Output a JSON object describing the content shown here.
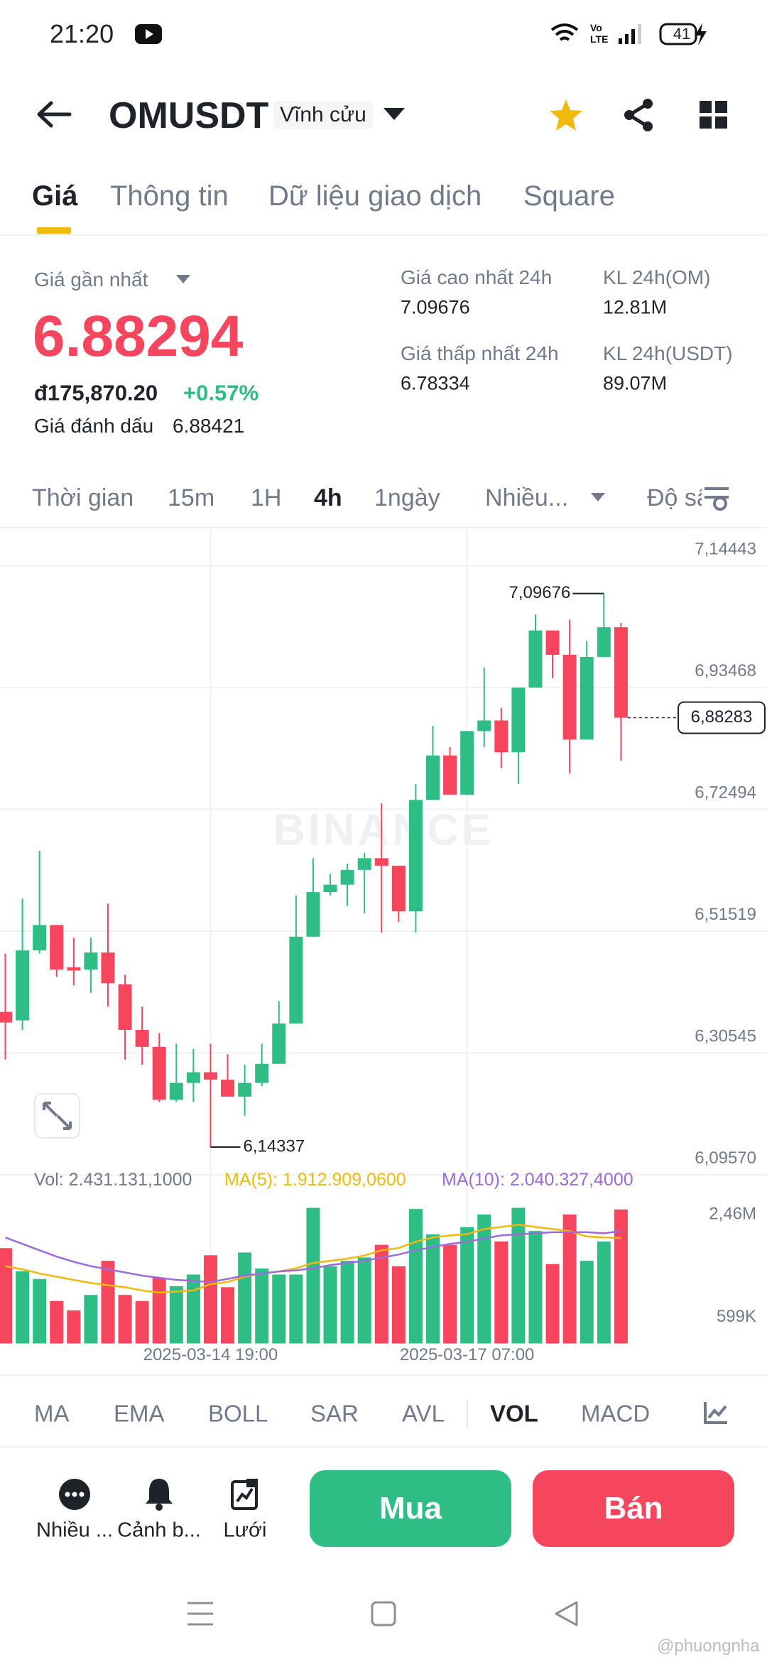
{
  "status_bar": {
    "time": "21:20",
    "battery": "41"
  },
  "header": {
    "symbol": "OMUSDT",
    "badge": "Vĩnh cửu"
  },
  "tabs": [
    "Giá",
    "Thông tin",
    "Dữ liệu giao dịch",
    "Square"
  ],
  "price_panel": {
    "last_label": "Giá gần nhất",
    "last_price": "6.88294",
    "fiat": "đ175,870.20",
    "change": "+0.57%",
    "mark_label": "Giá đánh dấu",
    "mark_price": "6.88421",
    "stats": [
      {
        "label": "Giá cao nhất 24h",
        "value": "7.09676"
      },
      {
        "label": "KL 24h(OM)",
        "value": "12.81M"
      },
      {
        "label": "Giá thấp nhất 24h",
        "value": "6.78334"
      },
      {
        "label": "KL 24h(USDT)",
        "value": "89.07M"
      }
    ]
  },
  "intervals": [
    "Thời gian",
    "15m",
    "1H",
    "4h",
    "1ngày",
    "Nhiều...",
    "Độ sâu"
  ],
  "chart_data": {
    "type": "candlestick",
    "watermark": "BINANCE",
    "categories": [
      null,
      null,
      null,
      null,
      null,
      null,
      null,
      null,
      null,
      null,
      null,
      null,
      "2025-03-14 19:00",
      null,
      null,
      null,
      null,
      null,
      null,
      null,
      null,
      null,
      null,
      null,
      null,
      null,
      null,
      "2025-03-17 07:00",
      null,
      null,
      null,
      null,
      null,
      null,
      null,
      null,
      null
    ],
    "open": [
      6.3762,
      6.3616,
      6.482,
      6.5258,
      6.4528,
      6.4492,
      6.4784,
      6.4236,
      6.3452,
      6.316,
      6.2247,
      6.2539,
      6.2722,
      6.2594,
      6.2302,
      6.2539,
      6.2868,
      6.3561,
      6.5057,
      6.5824,
      6.5952,
      6.6207,
      6.6408,
      6.628,
      6.5495,
      6.7412,
      6.8178,
      6.7503,
      6.8598,
      6.878,
      6.8233,
      6.9346,
      7.0331,
      6.9911,
      6.8452,
      6.9875,
      7.0386
    ],
    "high": [
      6.4766,
      6.5714,
      6.6536,
      6.5258,
      6.5039,
      6.5039,
      6.5623,
      6.4401,
      6.3853,
      6.3397,
      6.3214,
      6.3123,
      6.3214,
      6.3032,
      6.285,
      6.3214,
      6.3944,
      6.5769,
      6.6408,
      6.6134,
      6.6317,
      6.6499,
      6.7357,
      6.628,
      6.7685,
      6.8689,
      6.8324,
      6.8598,
      6.9693,
      6.8999,
      6.9346,
      7.0605,
      7.0331,
      7.0514,
      7.0149,
      7.09676,
      7.0459
    ],
    "low": [
      6.2941,
      6.3452,
      6.4766,
      6.4364,
      6.4218,
      6.409,
      6.3853,
      6.2941,
      6.285,
      6.2211,
      6.2211,
      6.2211,
      6.14337,
      6.2302,
      6.1974,
      6.2484,
      6.2868,
      6.3561,
      6.5057,
      6.5769,
      6.5587,
      6.5459,
      6.513,
      6.5313,
      6.513,
      6.7412,
      6.7503,
      6.7503,
      6.8324,
      6.7959,
      6.7685,
      6.9346,
      6.951,
      6.7868,
      6.8452,
      6.9875,
      6.8087
    ],
    "close": [
      6.3579,
      6.482,
      6.5258,
      6.4492,
      6.4474,
      6.4784,
      6.4255,
      6.3452,
      6.316,
      6.2247,
      6.2539,
      6.2722,
      6.2594,
      6.2302,
      6.2539,
      6.2868,
      6.3561,
      6.5057,
      6.5824,
      6.5952,
      6.6207,
      6.6408,
      6.628,
      6.5495,
      6.7412,
      6.8178,
      6.7503,
      6.8598,
      6.878,
      6.8233,
      6.9346,
      7.0331,
      6.9911,
      6.8452,
      6.9875,
      7.0386,
      6.88283
    ],
    "up_color": "#2ebd85",
    "down_color": "#f6465d",
    "ylim": [
      6.0957,
      7.14443
    ],
    "yticks": [
      {
        "value": 7.14443,
        "label": "7,14443"
      },
      {
        "value": 6.93468,
        "label": "6,93468"
      },
      {
        "value": 6.72494,
        "label": "6,72494"
      },
      {
        "value": 6.51519,
        "label": "6,51519"
      },
      {
        "value": 6.30545,
        "label": "6,30545"
      },
      {
        "value": 6.0957,
        "label": "6,09570"
      }
    ],
    "grid": true,
    "high_label": "7,09676",
    "low_label": "6,14337",
    "last_label": "6,88283",
    "volume": {
      "ylim": [
        0,
        2460000
      ],
      "yticks": [
        {
          "value": 2460000,
          "label": "2,46M"
        },
        {
          "value": 599000,
          "label": "599K"
        }
      ],
      "series": [
        {
          "name": "Vol: 2.431.131,1000",
          "color": "#707a8a",
          "values": [
            1730000,
            1310000,
            1170000,
            770000,
            600000,
            880000,
            1500000,
            880000,
            770000,
            1190000,
            1040000,
            1250000,
            1600000,
            1020000,
            1650000,
            1360000,
            1250000,
            1250000,
            2460000,
            1400000,
            1500000,
            1560000,
            1790000,
            1400000,
            2440000,
            1980000,
            1790000,
            2110000,
            2340000,
            1850000,
            2460000,
            2040000,
            1440000,
            2340000,
            1500000,
            1850000,
            2431131.1
          ]
        },
        {
          "name": "MA(5): 1.912.909,0600",
          "color": "#f0b90b",
          "values": [
            1403000,
            1345000,
            1269000,
            1211000,
            1153000,
            1096000,
            1057000,
            1019000,
            961000,
            923000,
            942000,
            961000,
            1076000,
            1115000,
            1211000,
            1269000,
            1307000,
            1365000,
            1461000,
            1499000,
            1538000,
            1595000,
            1691000,
            1730000,
            1845000,
            1922000,
            1960000,
            1980000,
            2076000,
            2114000,
            2153000,
            2114000,
            2076000,
            2037000,
            1941000,
            1922000,
            1912909.06
          ]
        },
        {
          "name": "MA(10): 2.040.327,4000",
          "color": "#9c6ade",
          "values": [
            1922000,
            1807000,
            1691000,
            1576000,
            1480000,
            1403000,
            1345000,
            1288000,
            1230000,
            1192000,
            1153000,
            1134000,
            1115000,
            1172000,
            1230000,
            1269000,
            1307000,
            1326000,
            1365000,
            1422000,
            1461000,
            1499000,
            1557000,
            1614000,
            1691000,
            1749000,
            1807000,
            1845000,
            1903000,
            1960000,
            1980000,
            1999000,
            2018000,
            2018000,
            2018000,
            1999000,
            2040327.4
          ]
        }
      ]
    }
  },
  "indicators": [
    "MA",
    "EMA",
    "BOLL",
    "SAR",
    "AVL",
    "VOL",
    "MACD"
  ],
  "actions": [
    "Nhiều ...",
    "Cảnh b...",
    "Lưới"
  ],
  "buttons": {
    "buy": "Mua",
    "sell": "Bán"
  },
  "credit": "@phuongnha"
}
